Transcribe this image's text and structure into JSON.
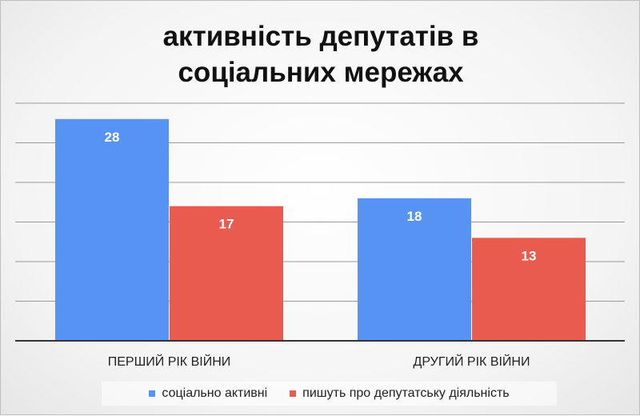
{
  "chart_data": {
    "type": "bar",
    "title_lines": [
      "активність депутатів в",
      "соціальних мережах"
    ],
    "xlabel": "",
    "ylabel": "",
    "categories": [
      "ПЕРШИЙ РІК ВІЙНИ",
      "ДРУГИЙ РІК ВІЙНИ"
    ],
    "series": [
      {
        "name": "соціально активні",
        "values": [
          28,
          18
        ],
        "color": "#5793f3"
      },
      {
        "name": "пишуть  про депутатську діяльність",
        "values": [
          17,
          13
        ],
        "color": "#e85b4e"
      }
    ],
    "ylim": [
      0,
      30
    ],
    "grid": true,
    "data_labels": true,
    "legend_position": "bottom"
  }
}
